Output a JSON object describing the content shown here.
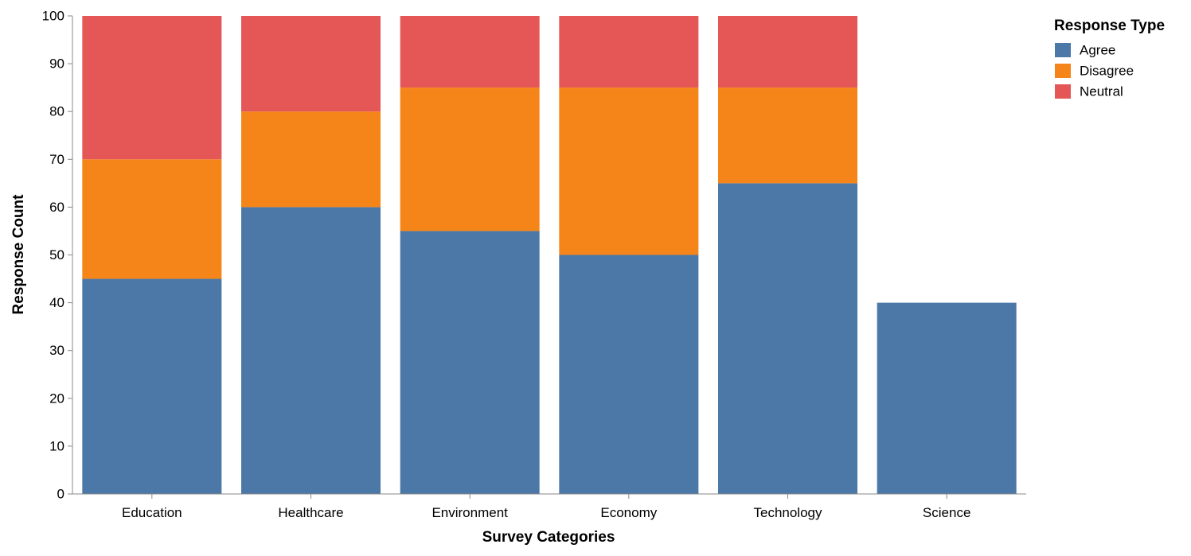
{
  "chart_data": {
    "type": "bar",
    "stacked": true,
    "categories": [
      "Education",
      "Healthcare",
      "Environment",
      "Economy",
      "Technology",
      "Science"
    ],
    "series": [
      {
        "name": "Agree",
        "color": "#4c78a8",
        "values": [
          45,
          60,
          55,
          50,
          65,
          40
        ]
      },
      {
        "name": "Disagree",
        "color": "#f58518",
        "values": [
          25,
          20,
          30,
          35,
          20,
          0
        ]
      },
      {
        "name": "Neutral",
        "color": "#e45756",
        "values": [
          30,
          20,
          15,
          15,
          15,
          0
        ]
      }
    ],
    "xlabel": "Survey Categories",
    "ylabel": "Response Count",
    "ylim": [
      0,
      100
    ],
    "yticks": [
      0,
      10,
      20,
      30,
      40,
      50,
      60,
      70,
      80,
      90,
      100
    ],
    "grid": false,
    "legend": {
      "title": "Response Type",
      "placement": "top-right"
    }
  }
}
